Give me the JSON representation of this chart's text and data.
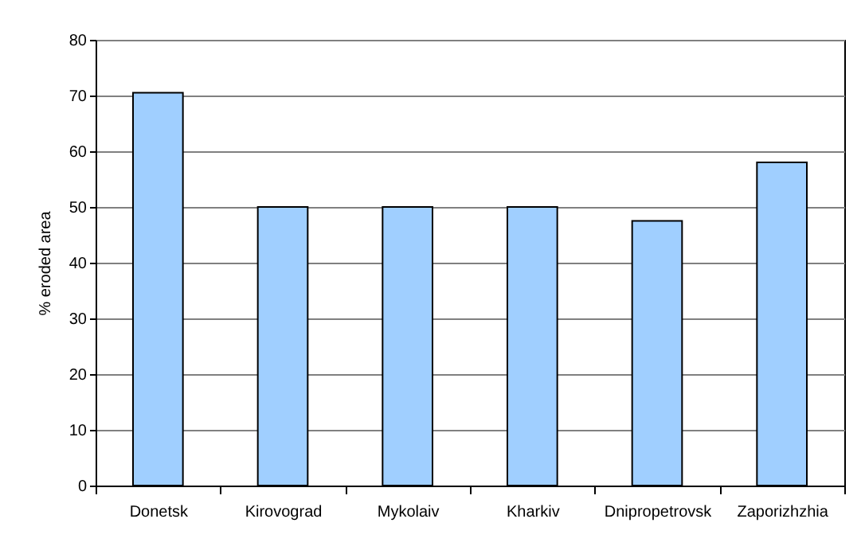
{
  "chart_data": {
    "type": "bar",
    "ylabel": "% eroded area",
    "categories": [
      "Donetsk",
      "Kirovograd",
      "Mykolaiv",
      "Kharkiv",
      "Dnipropetrovsk",
      "Zaporizhzhia"
    ],
    "values": [
      70.5,
      50,
      50,
      50,
      47.5,
      58
    ],
    "color": "#a0cfff",
    "ylim": [
      0,
      80
    ],
    "yticks": [
      0,
      10,
      20,
      30,
      40,
      50,
      60,
      70,
      80
    ],
    "grid": "y",
    "legend": false
  }
}
